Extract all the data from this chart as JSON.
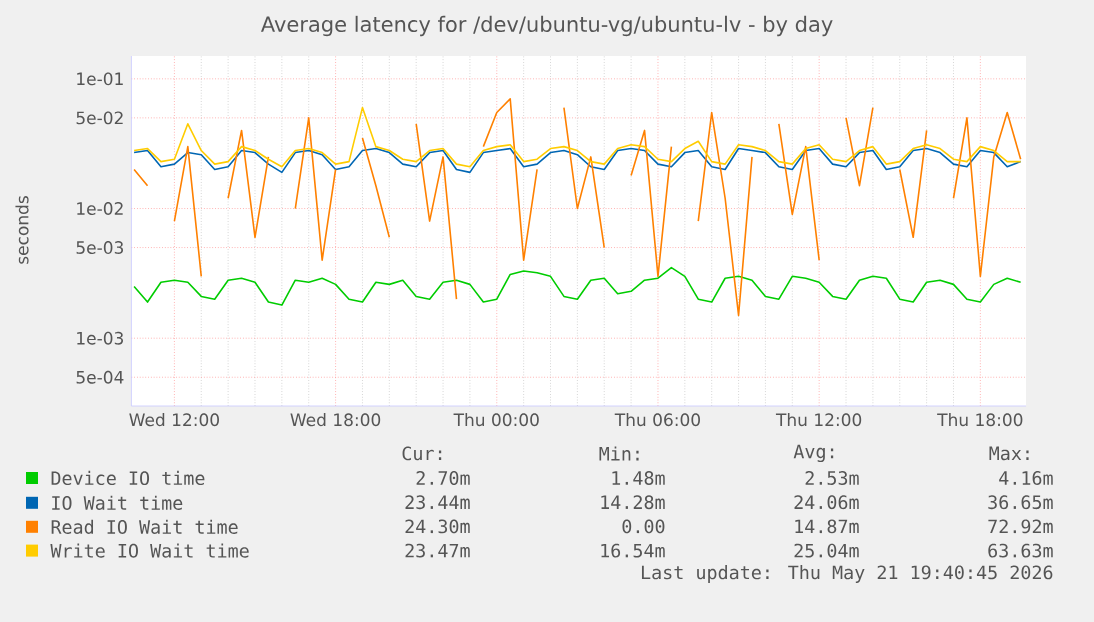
{
  "chart_data": {
    "type": "line",
    "title": "Average latency for /dev/ubuntu-vg/ubuntu-lv - by day",
    "ylabel": "seconds",
    "log": "y",
    "grid": true,
    "legend": "bottom",
    "xlim": [
      "2026-05-20T10:24",
      "2026-05-21T19:42"
    ],
    "ylim": [
      0.0003,
      0.15
    ],
    "xticks": [
      {
        "value": "2026-05-20T12:00",
        "label": "Wed 12:00"
      },
      {
        "value": "2026-05-20T18:00",
        "label": "Wed 18:00"
      },
      {
        "value": "2026-05-21T00:00",
        "label": "Thu 00:00"
      },
      {
        "value": "2026-05-21T06:00",
        "label": "Thu 06:00"
      },
      {
        "value": "2026-05-21T12:00",
        "label": "Thu 12:00"
      },
      {
        "value": "2026-05-21T18:00",
        "label": "Thu 18:00"
      }
    ],
    "yticks": [
      {
        "value": 0.1,
        "label": "1e-01"
      },
      {
        "value": 0.05,
        "label": "5e-02"
      },
      {
        "value": 0.01,
        "label": "1e-02"
      },
      {
        "value": 0.005,
        "label": "5e-03"
      },
      {
        "value": 0.001,
        "label": "1e-03"
      },
      {
        "value": 0.0005,
        "label": "5e-04"
      }
    ],
    "x": [
      "2026-05-20T10:30",
      "2026-05-20T11:00",
      "2026-05-20T11:30",
      "2026-05-20T12:00",
      "2026-05-20T12:30",
      "2026-05-20T13:00",
      "2026-05-20T13:30",
      "2026-05-20T14:00",
      "2026-05-20T14:30",
      "2026-05-20T15:00",
      "2026-05-20T15:30",
      "2026-05-20T16:00",
      "2026-05-20T16:30",
      "2026-05-20T17:00",
      "2026-05-20T17:30",
      "2026-05-20T18:00",
      "2026-05-20T18:30",
      "2026-05-20T19:00",
      "2026-05-20T19:30",
      "2026-05-20T20:00",
      "2026-05-20T20:30",
      "2026-05-20T21:00",
      "2026-05-20T21:30",
      "2026-05-20T22:00",
      "2026-05-20T22:30",
      "2026-05-20T23:00",
      "2026-05-20T23:30",
      "2026-05-21T00:00",
      "2026-05-21T00:30",
      "2026-05-21T01:00",
      "2026-05-21T01:30",
      "2026-05-21T02:00",
      "2026-05-21T02:30",
      "2026-05-21T03:00",
      "2026-05-21T03:30",
      "2026-05-21T04:00",
      "2026-05-21T04:30",
      "2026-05-21T05:00",
      "2026-05-21T05:30",
      "2026-05-21T06:00",
      "2026-05-21T06:30",
      "2026-05-21T07:00",
      "2026-05-21T07:30",
      "2026-05-21T08:00",
      "2026-05-21T08:30",
      "2026-05-21T09:00",
      "2026-05-21T09:30",
      "2026-05-21T10:00",
      "2026-05-21T10:30",
      "2026-05-21T11:00",
      "2026-05-21T11:30",
      "2026-05-21T12:00",
      "2026-05-21T12:30",
      "2026-05-21T13:00",
      "2026-05-21T13:30",
      "2026-05-21T14:00",
      "2026-05-21T14:30",
      "2026-05-21T15:00",
      "2026-05-21T15:30",
      "2026-05-21T16:00",
      "2026-05-21T16:30",
      "2026-05-21T17:00",
      "2026-05-21T17:30",
      "2026-05-21T18:00",
      "2026-05-21T18:30",
      "2026-05-21T19:00",
      "2026-05-21T19:30"
    ],
    "series": [
      {
        "name": "Device IO time",
        "color": "#00cc00",
        "values": [
          0.0025,
          0.0019,
          0.0027,
          0.0028,
          0.0027,
          0.0021,
          0.002,
          0.0028,
          0.0029,
          0.0027,
          0.0019,
          0.0018,
          0.0028,
          0.0027,
          0.0029,
          0.0026,
          0.002,
          0.0019,
          0.0027,
          0.0026,
          0.0028,
          0.0021,
          0.002,
          0.0027,
          0.0028,
          0.0026,
          0.0019,
          0.002,
          0.0031,
          0.0033,
          0.0032,
          0.003,
          0.0021,
          0.002,
          0.0028,
          0.0029,
          0.0022,
          0.0023,
          0.0028,
          0.0029,
          0.0035,
          0.003,
          0.002,
          0.0019,
          0.0029,
          0.003,
          0.0028,
          0.0021,
          0.002,
          0.003,
          0.0029,
          0.0027,
          0.0021,
          0.002,
          0.0028,
          0.003,
          0.0029,
          0.002,
          0.0019,
          0.0027,
          0.0028,
          0.0026,
          0.002,
          0.0019,
          0.0026,
          0.0029,
          0.0027
        ]
      },
      {
        "name": "IO Wait time",
        "color": "#0066b3",
        "values": [
          0.027,
          0.028,
          0.021,
          0.022,
          0.027,
          0.026,
          0.02,
          0.021,
          0.028,
          0.027,
          0.022,
          0.019,
          0.027,
          0.028,
          0.026,
          0.02,
          0.021,
          0.028,
          0.029,
          0.027,
          0.022,
          0.021,
          0.027,
          0.028,
          0.02,
          0.019,
          0.027,
          0.028,
          0.029,
          0.021,
          0.022,
          0.027,
          0.028,
          0.026,
          0.021,
          0.02,
          0.028,
          0.029,
          0.028,
          0.022,
          0.021,
          0.027,
          0.028,
          0.021,
          0.02,
          0.029,
          0.028,
          0.027,
          0.021,
          0.02,
          0.028,
          0.029,
          0.022,
          0.021,
          0.027,
          0.028,
          0.02,
          0.021,
          0.028,
          0.029,
          0.027,
          0.022,
          0.021,
          0.028,
          0.027,
          0.021,
          0.023
        ]
      },
      {
        "name": "Read IO Wait time",
        "color": "#ff8000",
        "values": [
          0.02,
          0.015,
          null,
          0.008,
          0.03,
          0.003,
          null,
          0.012,
          0.04,
          0.006,
          0.025,
          null,
          0.01,
          0.05,
          0.004,
          0.02,
          null,
          0.035,
          0.015,
          0.006,
          null,
          0.045,
          0.008,
          0.025,
          0.002,
          null,
          0.03,
          0.055,
          0.07,
          0.004,
          0.02,
          null,
          0.06,
          0.01,
          0.025,
          0.005,
          null,
          0.018,
          0.04,
          0.003,
          0.03,
          null,
          0.008,
          0.055,
          0.012,
          0.0015,
          0.025,
          null,
          0.045,
          0.009,
          0.03,
          0.004,
          null,
          0.05,
          0.015,
          0.06,
          null,
          0.02,
          0.006,
          0.04,
          null,
          0.012,
          0.05,
          0.003,
          0.025,
          0.055,
          0.024
        ]
      },
      {
        "name": "Write IO Wait time",
        "color": "#ffcc00",
        "values": [
          0.028,
          0.029,
          0.023,
          0.024,
          0.045,
          0.028,
          0.022,
          0.023,
          0.03,
          0.028,
          0.024,
          0.021,
          0.028,
          0.029,
          0.027,
          0.022,
          0.023,
          0.06,
          0.03,
          0.028,
          0.024,
          0.023,
          0.028,
          0.029,
          0.022,
          0.021,
          0.028,
          0.03,
          0.031,
          0.023,
          0.024,
          0.029,
          0.03,
          0.028,
          0.023,
          0.022,
          0.029,
          0.031,
          0.03,
          0.024,
          0.023,
          0.029,
          0.033,
          0.023,
          0.022,
          0.031,
          0.03,
          0.028,
          0.023,
          0.022,
          0.029,
          0.031,
          0.024,
          0.023,
          0.028,
          0.03,
          0.022,
          0.023,
          0.029,
          0.031,
          0.029,
          0.024,
          0.023,
          0.03,
          0.028,
          0.023,
          0.023
        ]
      }
    ],
    "annotations": [
      "Cur:",
      "Min:",
      "Avg:",
      "Max:",
      "2.70m",
      "1.48m",
      "2.53m",
      "4.16m",
      "23.44m",
      "14.28m",
      "24.06m",
      "36.65m",
      "24.30m",
      "0.00",
      "14.87m",
      "72.92m",
      "23.47m",
      "16.54m",
      "25.04m",
      "63.63m",
      "Last update: Thu May 21 19:40:45 2026"
    ]
  }
}
